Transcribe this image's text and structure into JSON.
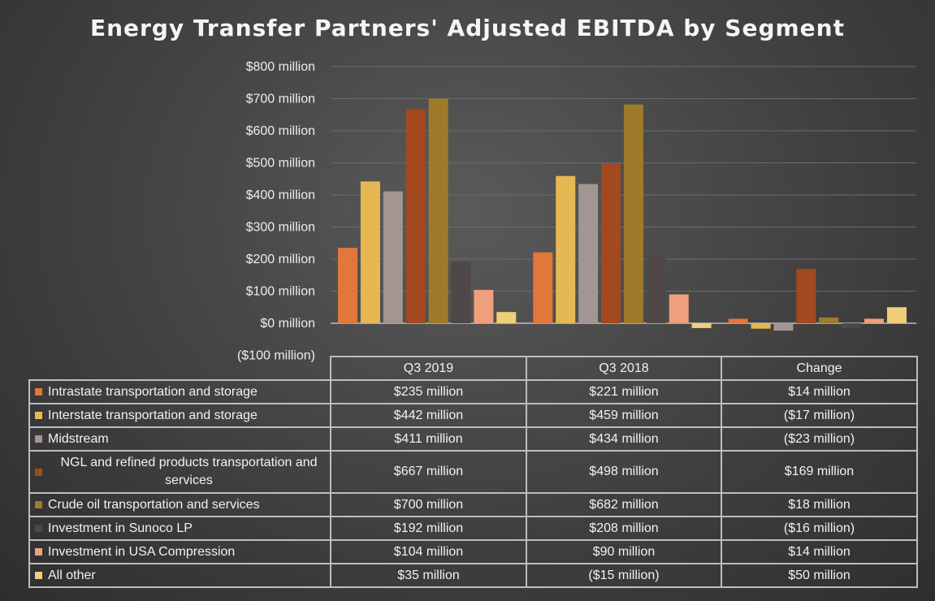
{
  "chart_data": {
    "type": "bar",
    "title": "Energy Transfer Partners' Adjusted EBITDA by Segment",
    "categories": [
      "Q3 2019",
      "Q3 2018",
      "Change"
    ],
    "y_ticks": [
      "$800 million",
      "$700 million",
      "$600 million",
      "$500 million",
      "$400 million",
      "$300 million",
      "$200 million",
      "$100 million",
      "$0 million",
      "($100 million)"
    ],
    "ylim": [
      -100,
      800
    ],
    "grid": true,
    "legend": "table-below",
    "series": [
      {
        "name": "Intrastate transportation and storage",
        "color": "#e2773a",
        "values": [
          235,
          221,
          14
        ],
        "labels": [
          "$235 million",
          "$221 million",
          "$14 million"
        ]
      },
      {
        "name": "Interstate transportation and storage",
        "color": "#e6b854",
        "values": [
          442,
          459,
          -17
        ],
        "labels": [
          "$442 million",
          "$459 million",
          "($17 million)"
        ]
      },
      {
        "name": "Midstream",
        "color": "#a39591",
        "values": [
          411,
          434,
          -23
        ],
        "labels": [
          "$411 million",
          "$434 million",
          "($23 million)"
        ]
      },
      {
        "name": "NGL and refined products transportation and services",
        "color": "#a2491f",
        "values": [
          667,
          498,
          169
        ],
        "labels": [
          "$667 million",
          "$498 million",
          "$169 million"
        ]
      },
      {
        "name": "Crude oil transportation and services",
        "color": "#9f7a2a",
        "values": [
          700,
          682,
          18
        ],
        "labels": [
          "$700 million",
          "$682 million",
          "$18 million"
        ]
      },
      {
        "name": "Investment in Sunoco LP",
        "color": "#504848",
        "values": [
          192,
          208,
          -16
        ],
        "labels": [
          "$192 million",
          "$208 million",
          "($16 million)"
        ]
      },
      {
        "name": "Investment in USA Compression",
        "color": "#eea07d",
        "values": [
          104,
          90,
          14
        ],
        "labels": [
          "$104 million",
          "$90 million",
          "$14 million"
        ]
      },
      {
        "name": "All other",
        "color": "#eece77",
        "values": [
          35,
          -15,
          50
        ],
        "labels": [
          "$35 million",
          "($15 million)",
          "$50 million"
        ]
      }
    ]
  }
}
